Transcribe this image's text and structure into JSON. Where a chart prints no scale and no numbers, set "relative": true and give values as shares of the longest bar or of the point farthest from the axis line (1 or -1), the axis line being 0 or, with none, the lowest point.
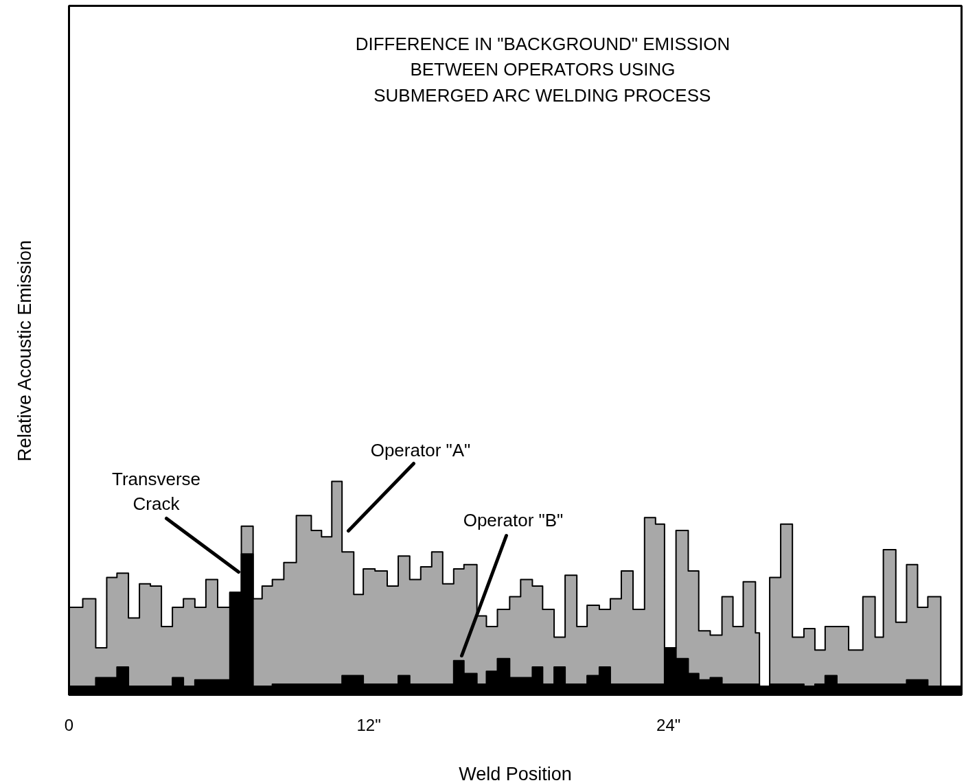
{
  "chart_data": {
    "type": "area",
    "title": "DIFFERENCE IN \"BACKGROUND\" EMISSION\nBETWEEN OPERATORS USING\nSUBMERGED ARC WELDING PROCESS",
    "xlabel": "Weld Position",
    "ylabel": "Relative Acoustic Emission",
    "relative": true,
    "grid": false,
    "xlim": [
      0,
      35.73
    ],
    "xticks": [
      {
        "value": 0,
        "label": "0"
      },
      {
        "value": 12,
        "label": "12\""
      },
      {
        "value": 24,
        "label": "24\""
      }
    ],
    "series": [
      {
        "color": "#a8a8a8",
        "x": [
          0,
          0.55,
          0.55,
          1.07,
          1.07,
          1.51,
          1.51,
          1.92,
          1.92,
          2.38,
          2.38,
          2.82,
          2.82,
          3.26,
          3.26,
          3.7,
          3.7,
          4.14,
          4.14,
          4.58,
          4.58,
          5.04,
          5.04,
          5.48,
          5.48,
          5.95,
          5.95,
          6.44,
          6.44,
          6.9,
          6.9,
          7.37,
          7.37,
          7.73,
          7.73,
          8.14,
          8.14,
          8.6,
          8.6,
          9.1,
          9.1,
          9.7,
          9.7,
          10.11,
          10.11,
          10.52,
          10.52,
          10.93,
          10.93,
          11.4,
          11.4,
          11.78,
          11.78,
          12.25,
          12.25,
          12.74,
          12.74,
          13.18,
          13.18,
          13.64,
          13.64,
          14.08,
          14.08,
          14.52,
          14.52,
          14.96,
          14.96,
          15.4,
          15.4,
          15.81,
          15.81,
          16.33,
          16.33,
          16.71,
          16.71,
          17.15,
          17.15,
          17.64,
          17.64,
          18.08,
          18.08,
          18.55,
          18.55,
          18.96,
          18.96,
          19.42,
          19.42,
          19.86,
          19.86,
          20.33,
          20.33,
          20.74,
          20.74,
          21.23,
          21.23,
          21.67,
          21.67,
          22.11,
          22.11,
          22.58,
          22.58,
          23.04,
          23.04,
          23.48,
          23.48,
          23.84,
          23.84,
          24.3,
          24.3,
          24.79,
          24.79,
          25.21,
          25.21,
          25.67,
          25.67,
          26.14,
          26.14,
          26.58,
          26.58,
          26.99,
          26.99,
          27.48,
          27.48,
          27.64,
          27.64,
          28.05,
          28.05,
          28.49,
          28.49,
          28.96,
          28.96,
          29.42,
          29.42,
          29.86,
          29.86,
          30.27,
          30.27,
          30.74,
          30.74,
          31.21,
          31.21,
          31.78,
          31.78,
          32.27,
          32.27,
          32.6,
          32.6,
          33.1,
          33.1,
          33.53,
          33.53,
          33.97,
          33.97,
          34.38,
          34.38,
          34.9
        ],
        "values": [
          0.41,
          0.41,
          0.45,
          0.45,
          0.22,
          0.22,
          0.55,
          0.55,
          0.57,
          0.57,
          0.36,
          0.36,
          0.52,
          0.52,
          0.51,
          0.51,
          0.32,
          0.32,
          0.41,
          0.41,
          0.45,
          0.45,
          0.41,
          0.41,
          0.54,
          0.54,
          0.41,
          0.41,
          0.48,
          0.48,
          0.79,
          0.79,
          0.45,
          0.45,
          0.51,
          0.51,
          0.54,
          0.54,
          0.62,
          0.62,
          0.84,
          0.84,
          0.77,
          0.77,
          0.74,
          0.74,
          1.0,
          1.0,
          0.67,
          0.67,
          0.47,
          0.47,
          0.59,
          0.59,
          0.58,
          0.58,
          0.51,
          0.51,
          0.65,
          0.65,
          0.54,
          0.54,
          0.6,
          0.6,
          0.67,
          0.67,
          0.52,
          0.52,
          0.59,
          0.59,
          0.61,
          0.61,
          0.37,
          0.37,
          0.32,
          0.32,
          0.4,
          0.4,
          0.46,
          0.46,
          0.54,
          0.54,
          0.51,
          0.51,
          0.4,
          0.4,
          0.27,
          0.27,
          0.56,
          0.56,
          0.32,
          0.32,
          0.42,
          0.42,
          0.4,
          0.4,
          0.45,
          0.45,
          0.58,
          0.58,
          0.4,
          0.4,
          0.83,
          0.83,
          0.8,
          0.8,
          0.22,
          0.22,
          0.77,
          0.77,
          0.58,
          0.58,
          0.3,
          0.3,
          0.28,
          0.28,
          0.46,
          0.46,
          0.32,
          0.32,
          0.53,
          0.53,
          0.29,
          0.29,
          0,
          0,
          0.55,
          0.55,
          0.8,
          0.8,
          0.27,
          0.27,
          0.31,
          0.31,
          0.21,
          0.21,
          0.32,
          0.32,
          0.32,
          0.32,
          0.21,
          0.21,
          0.46,
          0.46,
          0.27,
          0.27,
          0.68,
          0.68,
          0.34,
          0.34,
          0.61,
          0.61,
          0.41,
          0.41,
          0.46,
          0.46
        ]
      },
      {
        "color": "#000000",
        "x": [
          0,
          0.55,
          0.55,
          1.07,
          1.07,
          1.51,
          1.51,
          1.92,
          1.92,
          2.38,
          2.38,
          2.82,
          2.82,
          3.26,
          3.26,
          3.7,
          3.7,
          4.14,
          4.14,
          4.58,
          4.58,
          5.04,
          5.04,
          5.48,
          5.48,
          5.95,
          5.95,
          6.44,
          6.44,
          6.9,
          6.9,
          7.37,
          7.37,
          7.73,
          7.73,
          8.14,
          8.14,
          8.6,
          8.6,
          9.1,
          9.1,
          9.7,
          9.7,
          10.11,
          10.11,
          10.52,
          10.52,
          10.93,
          10.93,
          11.4,
          11.4,
          11.78,
          11.78,
          12.25,
          12.25,
          12.74,
          12.74,
          13.18,
          13.18,
          13.64,
          13.64,
          14.08,
          14.08,
          14.52,
          14.52,
          14.96,
          14.96,
          15.4,
          15.4,
          15.81,
          15.81,
          16.33,
          16.33,
          16.71,
          16.71,
          17.15,
          17.15,
          17.64,
          17.64,
          18.08,
          18.08,
          18.55,
          18.55,
          18.96,
          18.96,
          19.42,
          19.42,
          19.86,
          19.86,
          20.33,
          20.33,
          20.74,
          20.74,
          21.23,
          21.23,
          21.67,
          21.67,
          22.11,
          22.11,
          22.58,
          22.58,
          23.04,
          23.04,
          23.48,
          23.48,
          23.84,
          23.84,
          24.3,
          24.3,
          24.79,
          24.79,
          25.21,
          25.21,
          25.67,
          25.67,
          26.14,
          26.14,
          26.58,
          26.58,
          26.99,
          26.99,
          27.48,
          27.48,
          27.64,
          27.64,
          28.05,
          28.05,
          28.49,
          28.49,
          28.96,
          28.96,
          29.42,
          29.42,
          29.86,
          29.86,
          30.27,
          30.27,
          30.74,
          30.74,
          31.21,
          31.21,
          31.78,
          31.78,
          32.27,
          32.27,
          32.6,
          32.6,
          33.1,
          33.1,
          33.53,
          33.53,
          33.97,
          33.97,
          34.38,
          34.38,
          34.9,
          34.9,
          35.73
        ],
        "values": [
          0.04,
          0.04,
          0.04,
          0.04,
          0.08,
          0.08,
          0.08,
          0.08,
          0.13,
          0.13,
          0.04,
          0.04,
          0.04,
          0.04,
          0.04,
          0.04,
          0.04,
          0.04,
          0.08,
          0.08,
          0.04,
          0.04,
          0.07,
          0.07,
          0.07,
          0.07,
          0.07,
          0.07,
          0.48,
          0.48,
          0.66,
          0.66,
          0.04,
          0.04,
          0.04,
          0.04,
          0.05,
          0.05,
          0.05,
          0.05,
          0.05,
          0.05,
          0.05,
          0.05,
          0.05,
          0.05,
          0.05,
          0.05,
          0.09,
          0.09,
          0.09,
          0.09,
          0.05,
          0.05,
          0.05,
          0.05,
          0.05,
          0.05,
          0.09,
          0.09,
          0.05,
          0.05,
          0.05,
          0.05,
          0.05,
          0.05,
          0.05,
          0.05,
          0.16,
          0.16,
          0.1,
          0.1,
          0.05,
          0.05,
          0.11,
          0.11,
          0.17,
          0.17,
          0.08,
          0.08,
          0.08,
          0.08,
          0.13,
          0.13,
          0.05,
          0.05,
          0.13,
          0.13,
          0.05,
          0.05,
          0.05,
          0.05,
          0.09,
          0.09,
          0.13,
          0.13,
          0.05,
          0.05,
          0.05,
          0.05,
          0.05,
          0.05,
          0.05,
          0.05,
          0.05,
          0.05,
          0.22,
          0.22,
          0.17,
          0.17,
          0.1,
          0.1,
          0.07,
          0.07,
          0.08,
          0.08,
          0.05,
          0.05,
          0.05,
          0.05,
          0.05,
          0.05,
          0.05,
          0.05,
          0.04,
          0.04,
          0.05,
          0.05,
          0.05,
          0.05,
          0.05,
          0.05,
          0.04,
          0.04,
          0.05,
          0.05,
          0.09,
          0.09,
          0.05,
          0.05,
          0.05,
          0.05,
          0.05,
          0.05,
          0.05,
          0.05,
          0.05,
          0.05,
          0.05,
          0.05,
          0.07,
          0.07,
          0.07,
          0.07,
          0.04,
          0.04,
          0.04,
          0.04
        ]
      }
    ],
    "annotations": [
      "Transverse\nCrack",
      "Operator \"A\"",
      "Operator \"B\""
    ]
  }
}
